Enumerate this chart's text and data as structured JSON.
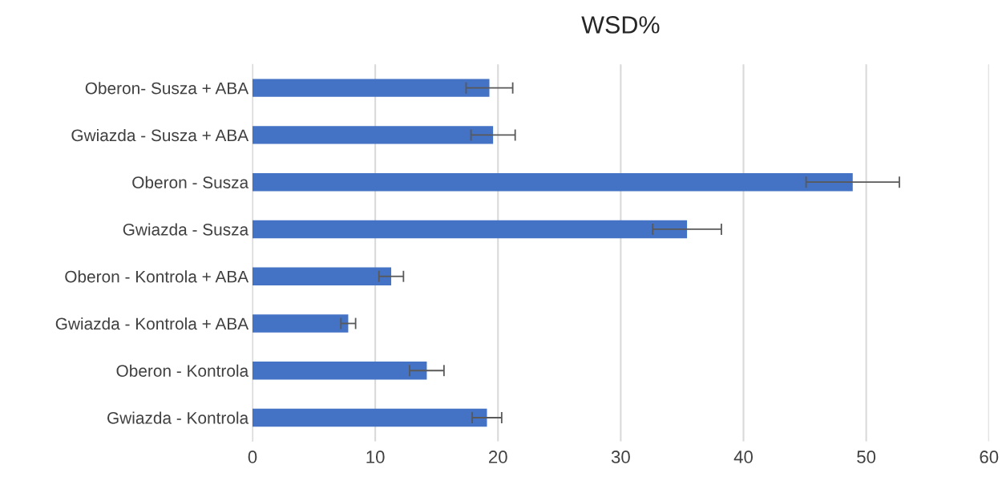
{
  "chart_data": {
    "type": "bar",
    "orientation": "horizontal",
    "title": "WSD%",
    "categories": [
      "Oberon- Susza + ABA",
      "Gwiazda - Susza + ABA",
      "Oberon - Susza",
      "Gwiazda - Susza",
      "Oberon - Kontrola + ABA",
      "Gwiazda - Kontrola + ABA",
      "Oberon - Kontrola",
      "Gwiazda - Kontrola"
    ],
    "values": [
      19.3,
      19.6,
      48.9,
      35.4,
      11.3,
      7.8,
      14.2,
      19.1
    ],
    "errors": [
      1.9,
      1.8,
      3.8,
      2.8,
      1.0,
      0.6,
      1.4,
      1.2
    ],
    "color": "#4472c4",
    "xlim": [
      0,
      60
    ],
    "xticks": [
      0,
      10,
      20,
      30,
      40,
      50,
      60
    ],
    "grid": "x",
    "legend": false
  }
}
